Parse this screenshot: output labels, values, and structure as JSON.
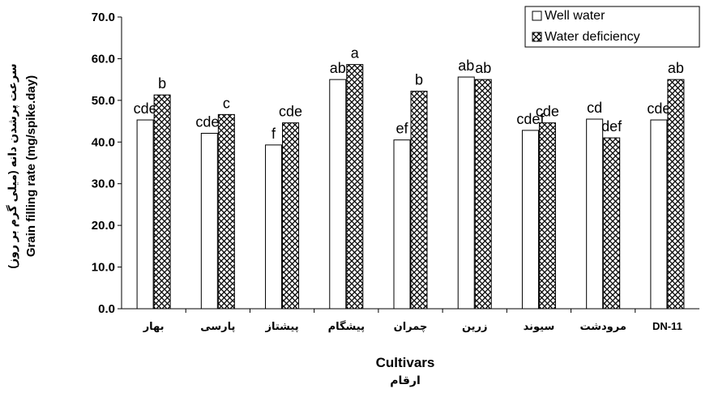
{
  "chart_data": {
    "type": "bar",
    "categories": [
      "بهار",
      "پارسی",
      "پیشتاز",
      "پیشگام",
      "چمران",
      "زرین",
      "سیوند",
      "مرودشت",
      "DN-11"
    ],
    "series": [
      {
        "name": "Well water",
        "values": [
          45.3,
          42.1,
          39.3,
          55.0,
          40.5,
          55.6,
          42.8,
          45.5,
          45.3
        ],
        "letters": [
          "cde",
          "cdef",
          "f",
          "ab",
          "ef",
          "ab",
          "cdef",
          "cd",
          "cde"
        ],
        "fill": "#ffffff"
      },
      {
        "name": "Water deficiency",
        "values": [
          51.3,
          46.6,
          44.6,
          58.6,
          52.2,
          55.0,
          44.6,
          41.0,
          55.0
        ],
        "letters": [
          "b",
          "c",
          "cde",
          "a",
          "b",
          "ab",
          "cde",
          "def",
          "ab"
        ],
        "fill": "hatch"
      }
    ],
    "title": "",
    "xlabel": "Cultivars",
    "xlabel_fa": "ارقام",
    "ylabel": "Grain filling rate (mg/spike.day)",
    "ylabel_fa": "سرعت پرشدن دانه (میلی گرم بر روز)",
    "ylim": [
      0,
      70
    ],
    "yticks": [
      "0.0",
      "10.0",
      "20.0",
      "30.0",
      "40.0",
      "50.0",
      "60.0",
      "70.0"
    ],
    "grid": false,
    "legend": "top-right",
    "colors": {
      "bar_stroke": "#000000",
      "hatch": "#000000",
      "background": "#ffffff"
    }
  }
}
